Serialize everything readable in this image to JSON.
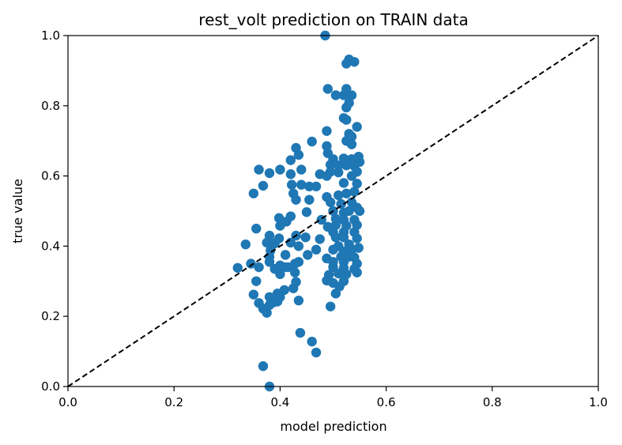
{
  "chart_data": {
    "type": "scatter",
    "title": "rest_volt prediction on TRAIN data",
    "xlabel": "model prediction",
    "ylabel": "true value",
    "xlim": [
      0.0,
      1.0
    ],
    "ylim": [
      0.0,
      1.0
    ],
    "xticks": [
      "0.0",
      "0.2",
      "0.4",
      "0.6",
      "0.8",
      "1.0"
    ],
    "yticks": [
      "0.0",
      "0.2",
      "0.4",
      "0.6",
      "0.8",
      "1.0"
    ],
    "grid": false,
    "marker_color": "#1f77b4",
    "reference_line": {
      "from": [
        0,
        0
      ],
      "to": [
        1,
        1
      ],
      "style": "dashed",
      "color": "#000000"
    },
    "points": [
      [
        0.485,
        1.0
      ],
      [
        0.53,
        0.932
      ],
      [
        0.54,
        0.925
      ],
      [
        0.525,
        0.92
      ],
      [
        0.49,
        0.848
      ],
      [
        0.525,
        0.848
      ],
      [
        0.505,
        0.83
      ],
      [
        0.52,
        0.83
      ],
      [
        0.535,
        0.83
      ],
      [
        0.53,
        0.808
      ],
      [
        0.525,
        0.795
      ],
      [
        0.52,
        0.765
      ],
      [
        0.525,
        0.76
      ],
      [
        0.545,
        0.74
      ],
      [
        0.53,
        0.72
      ],
      [
        0.535,
        0.712
      ],
      [
        0.488,
        0.728
      ],
      [
        0.46,
        0.698
      ],
      [
        0.525,
        0.7
      ],
      [
        0.535,
        0.69
      ],
      [
        0.488,
        0.685
      ],
      [
        0.49,
        0.665
      ],
      [
        0.43,
        0.68
      ],
      [
        0.435,
        0.66
      ],
      [
        0.5,
        0.648
      ],
      [
        0.52,
        0.65
      ],
      [
        0.535,
        0.648
      ],
      [
        0.548,
        0.655
      ],
      [
        0.42,
        0.645
      ],
      [
        0.495,
        0.632
      ],
      [
        0.51,
        0.63
      ],
      [
        0.525,
        0.63
      ],
      [
        0.54,
        0.628
      ],
      [
        0.55,
        0.64
      ],
      [
        0.36,
        0.618
      ],
      [
        0.38,
        0.608
      ],
      [
        0.4,
        0.618
      ],
      [
        0.42,
        0.605
      ],
      [
        0.44,
        0.618
      ],
      [
        0.475,
        0.605
      ],
      [
        0.495,
        0.612
      ],
      [
        0.51,
        0.61
      ],
      [
        0.545,
        0.612
      ],
      [
        0.488,
        0.6
      ],
      [
        0.535,
        0.6
      ],
      [
        0.44,
        0.575
      ],
      [
        0.455,
        0.57
      ],
      [
        0.468,
        0.57
      ],
      [
        0.422,
        0.575
      ],
      [
        0.368,
        0.572
      ],
      [
        0.52,
        0.58
      ],
      [
        0.545,
        0.578
      ],
      [
        0.35,
        0.55
      ],
      [
        0.425,
        0.55
      ],
      [
        0.43,
        0.532
      ],
      [
        0.455,
        0.532
      ],
      [
        0.488,
        0.54
      ],
      [
        0.51,
        0.545
      ],
      [
        0.525,
        0.55
      ],
      [
        0.54,
        0.555
      ],
      [
        0.495,
        0.525
      ],
      [
        0.515,
        0.52
      ],
      [
        0.535,
        0.525
      ],
      [
        0.545,
        0.51
      ],
      [
        0.55,
        0.5
      ],
      [
        0.45,
        0.497
      ],
      [
        0.5,
        0.5
      ],
      [
        0.52,
        0.495
      ],
      [
        0.53,
        0.5
      ],
      [
        0.398,
        0.48
      ],
      [
        0.412,
        0.47
      ],
      [
        0.42,
        0.485
      ],
      [
        0.4,
        0.458
      ],
      [
        0.478,
        0.475
      ],
      [
        0.505,
        0.478
      ],
      [
        0.52,
        0.475
      ],
      [
        0.54,
        0.475
      ],
      [
        0.355,
        0.45
      ],
      [
        0.49,
        0.455
      ],
      [
        0.505,
        0.46
      ],
      [
        0.525,
        0.458
      ],
      [
        0.545,
        0.46
      ],
      [
        0.5,
        0.44
      ],
      [
        0.52,
        0.44
      ],
      [
        0.54,
        0.44
      ],
      [
        0.38,
        0.43
      ],
      [
        0.398,
        0.422
      ],
      [
        0.43,
        0.43
      ],
      [
        0.448,
        0.425
      ],
      [
        0.475,
        0.42
      ],
      [
        0.505,
        0.425
      ],
      [
        0.52,
        0.425
      ],
      [
        0.545,
        0.422
      ],
      [
        0.335,
        0.405
      ],
      [
        0.375,
        0.41
      ],
      [
        0.39,
        0.408
      ],
      [
        0.42,
        0.41
      ],
      [
        0.435,
        0.4
      ],
      [
        0.51,
        0.4
      ],
      [
        0.53,
        0.405
      ],
      [
        0.548,
        0.395
      ],
      [
        0.382,
        0.388
      ],
      [
        0.468,
        0.39
      ],
      [
        0.5,
        0.39
      ],
      [
        0.52,
        0.385
      ],
      [
        0.535,
        0.39
      ],
      [
        0.38,
        0.37
      ],
      [
        0.41,
        0.375
      ],
      [
        0.452,
        0.375
      ],
      [
        0.488,
        0.365
      ],
      [
        0.515,
        0.37
      ],
      [
        0.53,
        0.37
      ],
      [
        0.54,
        0.368
      ],
      [
        0.345,
        0.35
      ],
      [
        0.38,
        0.355
      ],
      [
        0.4,
        0.345
      ],
      [
        0.41,
        0.34
      ],
      [
        0.428,
        0.35
      ],
      [
        0.435,
        0.355
      ],
      [
        0.5,
        0.355
      ],
      [
        0.52,
        0.355
      ],
      [
        0.545,
        0.35
      ],
      [
        0.32,
        0.338
      ],
      [
        0.36,
        0.34
      ],
      [
        0.39,
        0.335
      ],
      [
        0.415,
        0.34
      ],
      [
        0.5,
        0.34
      ],
      [
        0.52,
        0.338
      ],
      [
        0.54,
        0.335
      ],
      [
        0.4,
        0.32
      ],
      [
        0.428,
        0.325
      ],
      [
        0.492,
        0.318
      ],
      [
        0.51,
        0.322
      ],
      [
        0.525,
        0.32
      ],
      [
        0.545,
        0.325
      ],
      [
        0.355,
        0.3
      ],
      [
        0.43,
        0.298
      ],
      [
        0.488,
        0.302
      ],
      [
        0.5,
        0.295
      ],
      [
        0.52,
        0.3
      ],
      [
        0.512,
        0.285
      ],
      [
        0.425,
        0.28
      ],
      [
        0.408,
        0.275
      ],
      [
        0.395,
        0.265
      ],
      [
        0.505,
        0.265
      ],
      [
        0.35,
        0.262
      ],
      [
        0.38,
        0.255
      ],
      [
        0.392,
        0.25
      ],
      [
        0.4,
        0.255
      ],
      [
        0.395,
        0.242
      ],
      [
        0.435,
        0.245
      ],
      [
        0.38,
        0.232
      ],
      [
        0.388,
        0.24
      ],
      [
        0.36,
        0.238
      ],
      [
        0.368,
        0.222
      ],
      [
        0.375,
        0.21
      ],
      [
        0.495,
        0.228
      ],
      [
        0.438,
        0.153
      ],
      [
        0.46,
        0.128
      ],
      [
        0.468,
        0.097
      ],
      [
        0.368,
        0.058
      ],
      [
        0.38,
        0.0
      ]
    ]
  }
}
